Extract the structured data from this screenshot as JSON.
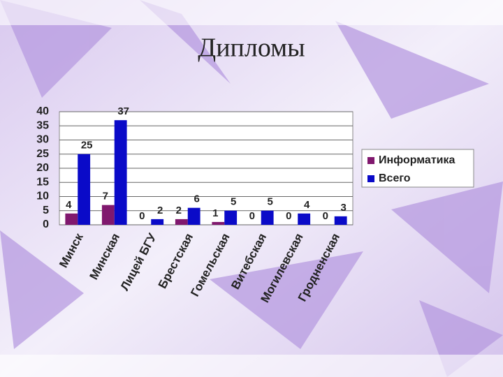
{
  "chart_data": {
    "type": "bar",
    "title": "Дипломы",
    "categories": [
      "Минск",
      "Минская",
      "Лицей БГУ",
      "Брестская",
      "Гомельская",
      "Витебская",
      "Могилевская",
      "Гродненская"
    ],
    "series": [
      {
        "name": "Информатика",
        "color": "#80186e",
        "values": [
          4,
          7,
          0,
          2,
          1,
          0,
          0,
          0
        ]
      },
      {
        "name": "Всего",
        "color": "#0a0ac8",
        "values": [
          25,
          37,
          2,
          6,
          5,
          5,
          4,
          3
        ]
      }
    ],
    "ylim": [
      0,
      40
    ],
    "yticks": [
      0,
      5,
      10,
      15,
      20,
      25,
      30,
      35,
      40
    ],
    "grid": true,
    "legend": "right"
  }
}
